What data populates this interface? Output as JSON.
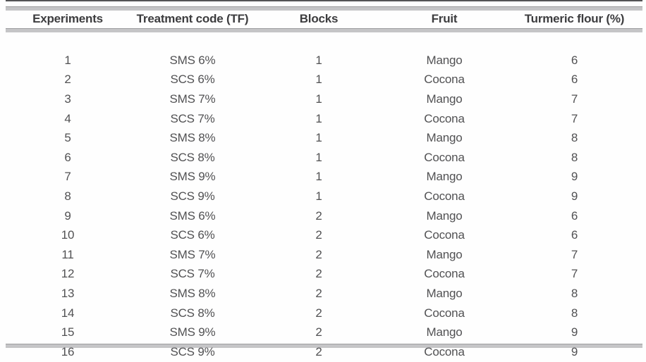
{
  "table": {
    "columns": [
      {
        "label": "Experiments"
      },
      {
        "label": "Treatment code (TF)"
      },
      {
        "label": "Blocks"
      },
      {
        "label": "Fruit"
      },
      {
        "label": "Turmeric flour (%)"
      }
    ],
    "rows": [
      [
        "1",
        "SMS 6%",
        "1",
        "Mango",
        "6"
      ],
      [
        "2",
        "SCS 6%",
        "1",
        "Cocona",
        "6"
      ],
      [
        "3",
        "SMS 7%",
        "1",
        "Mango",
        "7"
      ],
      [
        "4",
        "SCS 7%",
        "1",
        "Cocona",
        "7"
      ],
      [
        "5",
        "SMS 8%",
        "1",
        "Mango",
        "8"
      ],
      [
        "6",
        "SCS 8%",
        "1",
        "Cocona",
        "8"
      ],
      [
        "7",
        "SMS 9%",
        "1",
        "Mango",
        "9"
      ],
      [
        "8",
        "SCS 9%",
        "1",
        "Cocona",
        "9"
      ],
      [
        "9",
        "SMS 6%",
        "2",
        "Mango",
        "6"
      ],
      [
        "10",
        "SCS 6%",
        "2",
        "Cocona",
        "6"
      ],
      [
        "11",
        "SMS 7%",
        "2",
        "Mango",
        "7"
      ],
      [
        "12",
        "SCS 7%",
        "2",
        "Cocona",
        "7"
      ],
      [
        "13",
        "SMS 8%",
        "2",
        "Mango",
        "8"
      ],
      [
        "14",
        "SCS 8%",
        "2",
        "Cocona",
        "8"
      ],
      [
        "15",
        "SMS 9%",
        "2",
        "Mango",
        "9"
      ],
      [
        "16",
        "SCS 9%",
        "2",
        "Cocona",
        "9"
      ]
    ]
  },
  "colors": {
    "background": "#fefefe",
    "rule_dark": "#545456",
    "rule_gray": "#c5c5c7",
    "rule_gray_edge": "#9e9ea0",
    "header_text": "#3c3c3e",
    "body_text": "#515153"
  }
}
